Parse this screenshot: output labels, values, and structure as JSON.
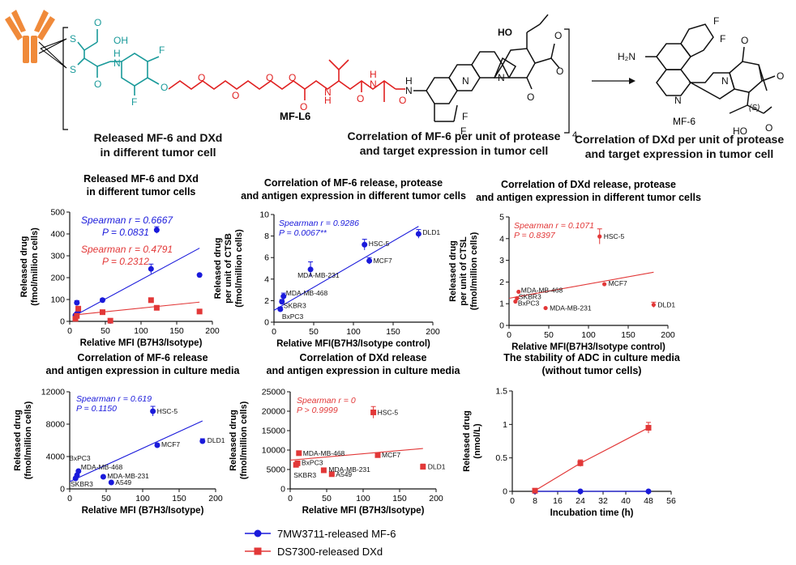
{
  "scheme": {
    "linker_label": "MF-L6",
    "payload_label": "MF-6",
    "subscript_n": "4",
    "atoms": {
      "s1": "S",
      "s2": "S",
      "oh_acid": "OH",
      "o_acid": "O",
      "h_amide1": "H",
      "n_amide1": "N",
      "o_amide1": "O",
      "f_ring1": "F",
      "f_ring2": "F",
      "o_ether": "O",
      "o_peg1": "O",
      "o_peg2": "O",
      "o_peg3": "O",
      "o_peg4": "O",
      "o_carb1": "O",
      "h_n2": "H",
      "n2": "N",
      "o_carb2": "O",
      "h_n3": "H",
      "n3": "N",
      "o_carb3": "O",
      "h_n4": "H",
      "n4": "N",
      "n_ring1": "N",
      "n_ring2": "N",
      "o_lactone1": "O",
      "o_lactone2": "O",
      "o_ketone1": "O",
      "ho1": "HO",
      "f_cf2a": "F",
      "f_cf2b": "F",
      "h2n": "H₂N",
      "f_p1": "F",
      "f_p2": "F",
      "n_p1": "N",
      "n_p2": "N",
      "o_p1": "O",
      "o_p2": "O",
      "o_p3": "O",
      "ho_p": "HO",
      "s_stereo": "(S)"
    }
  },
  "heading_overlays": [
    {
      "text": "Released MF-6 and DXd"
    },
    {
      "text": "in different tumor cell"
    },
    {
      "text": "Correlation of MF-6 per unit of protease"
    },
    {
      "text": "and target expression in tumor cell"
    },
    {
      "text": "Correlation of DXd per unit of protease"
    },
    {
      "text": "and target expression in tumor cell"
    }
  ],
  "legend": [
    {
      "label": "7MW3711-released MF-6",
      "color": "#1a1adb",
      "marker": "circle"
    },
    {
      "label": "DS7300-released DXd",
      "color": "#e23838",
      "marker": "square"
    }
  ],
  "chart_data": [
    {
      "type": "scatter",
      "title": [
        "Released MF-6 and DXd",
        "in different tumor cells"
      ],
      "xlabel": "Relative MFI (B7H3/Isotype)",
      "ylabel": [
        "Released drug",
        "(fmol/million cells)"
      ],
      "xlim": [
        0,
        200
      ],
      "ylim": [
        0,
        500
      ],
      "xticks": [
        0,
        50,
        100,
        150,
        200
      ],
      "yticks": [
        0,
        100,
        200,
        300,
        400,
        500
      ],
      "stats": [
        {
          "r": "Spearman r = 0.6667",
          "p": "P = 0.0831",
          "color": "#1a1adb"
        },
        {
          "r": "Spearman r = 0.4791",
          "p": "P = 0.2312",
          "color": "#e23838"
        }
      ],
      "series": [
        {
          "marker": "circle",
          "color": "#1a1adb",
          "points": [
            [
              8,
              28,
              0
            ],
            [
              10,
              85,
              10
            ],
            [
              12,
              48,
              0
            ],
            [
              10,
              35,
              0
            ],
            [
              46,
              97,
              8
            ],
            [
              57,
              2,
              0
            ],
            [
              114,
              240,
              22
            ],
            [
              122,
              418,
              15
            ],
            [
              182,
              212,
              0
            ]
          ],
          "fit": [
            [
              8,
              28
            ],
            [
              182,
              335
            ]
          ]
        },
        {
          "marker": "square",
          "color": "#e23838",
          "points": [
            [
              8,
              12,
              0
            ],
            [
              10,
              25,
              0
            ],
            [
              12,
              58,
              0
            ],
            [
              46,
              42,
              10
            ],
            [
              57,
              3,
              0
            ],
            [
              114,
              97,
              10
            ],
            [
              122,
              62,
              0
            ],
            [
              182,
              45,
              0
            ]
          ],
          "fit": [
            [
              8,
              30
            ],
            [
              182,
              88
            ]
          ]
        }
      ],
      "labels": []
    },
    {
      "type": "scatter",
      "title": [
        "Correlation of MF-6 release, protease",
        "and antigen expression in different tumor cells"
      ],
      "xlabel": "Relative MFI(B7H3/Isotype control)",
      "ylabel": [
        "Released drug",
        "per unit of CTSB",
        "(fmol/million cells)"
      ],
      "xlim": [
        0,
        200
      ],
      "ylim": [
        0,
        10
      ],
      "xticks": [
        0,
        50,
        100,
        150,
        200
      ],
      "yticks": [
        0,
        2,
        4,
        6,
        8,
        10
      ],
      "stats": [
        {
          "r": "Spearman r = 0.9286",
          "p": "P = 0.0067**",
          "color": "#1a1adb"
        }
      ],
      "series": [
        {
          "marker": "circle",
          "color": "#1a1adb",
          "points": [
            [
              8,
              1.2,
              0.2
            ],
            [
              10,
              1.9,
              0.2
            ],
            [
              12,
              2.4,
              0.3
            ],
            [
              46,
              4.9,
              0.7
            ],
            [
              114,
              7.2,
              0.5
            ],
            [
              120,
              5.7,
              0.3
            ],
            [
              182,
              8.2,
              0.4
            ]
          ],
          "fit": [
            [
              0,
              1.1
            ],
            [
              182,
              8.9
            ]
          ]
        }
      ],
      "labels": [
        {
          "text": "DLD1",
          "x": 182,
          "y": 8.2,
          "dx": 5,
          "dy": 1
        },
        {
          "text": "HSC-5",
          "x": 114,
          "y": 7.2,
          "dx": 5,
          "dy": 2
        },
        {
          "text": "MCF7",
          "x": 120,
          "y": 5.7,
          "dx": 5,
          "dy": 3
        },
        {
          "text": "MDA-MB-231",
          "x": 46,
          "y": 4.9,
          "dx": -16,
          "dy": 10
        },
        {
          "text": "MDA-MB-468",
          "x": 12,
          "y": 2.4,
          "dx": 3,
          "dy": -1
        },
        {
          "text": "SKBR3",
          "x": 10,
          "y": 1.9,
          "dx": 2,
          "dy": 8
        },
        {
          "text": "BxPC3",
          "x": 8,
          "y": 1.2,
          "dx": 2,
          "dy": 12
        }
      ]
    },
    {
      "type": "scatter",
      "title": [
        "Correlation of DXd release, protease",
        "and antigen expression in different tumor cells"
      ],
      "xlabel": "Relative MFI(B7H3/Isotype control)",
      "ylabel": [
        "Released drug",
        "per unit of CTSL",
        "(fmol/million cells)"
      ],
      "xlim": [
        0,
        200
      ],
      "ylim": [
        0,
        5
      ],
      "xticks": [
        0,
        50,
        100,
        150,
        200
      ],
      "yticks": [
        0,
        1,
        2,
        3,
        4,
        5
      ],
      "stats": [
        {
          "r": "Spearman r = 0.1071",
          "p": "P = 0.8397",
          "color": "#e23838"
        }
      ],
      "series": [
        {
          "marker": "circle",
          "color": "#e23838",
          "points": [
            [
              8,
              1.1,
              0
            ],
            [
              10,
              1.25,
              0
            ],
            [
              12,
              1.55,
              0
            ],
            [
              46,
              0.8,
              0
            ],
            [
              114,
              4.1,
              0.35
            ],
            [
              120,
              1.9,
              0
            ],
            [
              182,
              0.95,
              0.12
            ]
          ],
          "fit": [
            [
              0,
              1.25
            ],
            [
              182,
              2.45
            ]
          ]
        }
      ],
      "labels": [
        {
          "text": "HSC-5",
          "x": 114,
          "y": 4.1,
          "dx": 5,
          "dy": 3
        },
        {
          "text": "MCF7",
          "x": 120,
          "y": 1.9,
          "dx": 5,
          "dy": 2
        },
        {
          "text": "MDA-MB-468",
          "x": 12,
          "y": 1.55,
          "dx": 3,
          "dy": 1
        },
        {
          "text": "SKBR3",
          "x": 10,
          "y": 1.25,
          "dx": 2,
          "dy": 1
        },
        {
          "text": "BxPC3",
          "x": 8,
          "y": 1.1,
          "dx": 3,
          "dy": 5
        },
        {
          "text": "MDA-MB-231",
          "x": 46,
          "y": 0.8,
          "dx": 5,
          "dy": 3
        },
        {
          "text": "DLD1",
          "x": 182,
          "y": 0.95,
          "dx": 5,
          "dy": 3
        }
      ]
    },
    {
      "type": "scatter",
      "title": [
        "Correlation of  MF-6 release",
        "and antigen expression  in culture media"
      ],
      "xlabel": "Relative MFI (B7H3/Isotype)",
      "ylabel": [
        "Released drug",
        "(fmol/million cells)"
      ],
      "xlim": [
        0,
        200
      ],
      "ylim": [
        0,
        12000
      ],
      "xticks": [
        0,
        50,
        100,
        150,
        200
      ],
      "yticks": [
        0,
        4000,
        8000,
        12000
      ],
      "stats": [
        {
          "r": "Spearman r = 0.619",
          "p": "P = 0.1150",
          "color": "#1a1adb"
        }
      ],
      "series": [
        {
          "marker": "circle",
          "color": "#1a1adb",
          "points": [
            [
              8,
              1300,
              0
            ],
            [
              10,
              1700,
              0
            ],
            [
              12,
              2200,
              0
            ],
            [
              46,
              1500,
              0
            ],
            [
              57,
              800,
              0
            ],
            [
              114,
              9600,
              600
            ],
            [
              120,
              5400,
              200
            ],
            [
              182,
              5900,
              300
            ]
          ],
          "fit": [
            [
              0,
              900
            ],
            [
              182,
              8400
            ]
          ]
        }
      ],
      "labels": [
        {
          "text": "HSC-5",
          "x": 114,
          "y": 9600,
          "dx": 5,
          "dy": 3
        },
        {
          "text": "MCF7",
          "x": 120,
          "y": 5400,
          "dx": 5,
          "dy": 2
        },
        {
          "text": "DLD1",
          "x": 182,
          "y": 5900,
          "dx": 6,
          "dy": 2
        },
        {
          "text": "BxPC3",
          "x": 8,
          "y": 1300,
          "dx": -8,
          "dy": -22
        },
        {
          "text": "MDA-MB-468",
          "x": 12,
          "y": 2200,
          "dx": 3,
          "dy": -2
        },
        {
          "text": "MDA-MB-231",
          "x": 46,
          "y": 1500,
          "dx": 5,
          "dy": 2
        },
        {
          "text": "SKBR3",
          "x": 10,
          "y": 1700,
          "dx": -8,
          "dy": 14
        },
        {
          "text": "A549",
          "x": 57,
          "y": 800,
          "dx": 5,
          "dy": 3
        }
      ]
    },
    {
      "type": "scatter",
      "title": [
        "Correlation of DXd release",
        "and antigen expression in culture media"
      ],
      "xlabel": "Relative MFI (B7H3/Isotype)",
      "ylabel": [
        "Released drug",
        "(fmol/million cells)"
      ],
      "xlim": [
        0,
        200
      ],
      "ylim": [
        0,
        25000
      ],
      "xticks": [
        0,
        50,
        100,
        150,
        200
      ],
      "yticks": [
        0,
        5000,
        10000,
        15000,
        20000,
        25000
      ],
      "stats": [
        {
          "r": "Spearman r = 0",
          "p": "P > 0.9999",
          "color": "#e23838"
        }
      ],
      "series": [
        {
          "marker": "square",
          "color": "#e23838",
          "points": [
            [
              8,
              6200,
              0
            ],
            [
              10,
              6600,
              0
            ],
            [
              12,
              9200,
              0
            ],
            [
              46,
              4800,
              0
            ],
            [
              57,
              3800,
              0
            ],
            [
              114,
              19700,
              1500
            ],
            [
              120,
              8700,
              0
            ],
            [
              182,
              5700,
              700
            ]
          ],
          "fit": [
            [
              0,
              7400
            ],
            [
              182,
              10400
            ]
          ]
        }
      ],
      "labels": [
        {
          "text": "HSC-5",
          "x": 114,
          "y": 19700,
          "dx": 5,
          "dy": 3
        },
        {
          "text": "MDA-MB-468",
          "x": 12,
          "y": 9200,
          "dx": 5,
          "dy": 3
        },
        {
          "text": "MCF7",
          "x": 120,
          "y": 8700,
          "dx": 5,
          "dy": 3
        },
        {
          "text": "BxPC3",
          "x": 10,
          "y": 6600,
          "dx": 5,
          "dy": 2
        },
        {
          "text": "SKBR3",
          "x": 8,
          "y": 6200,
          "dx": -3,
          "dy": 16
        },
        {
          "text": "MDA-MB-231",
          "x": 46,
          "y": 4800,
          "dx": 6,
          "dy": 2
        },
        {
          "text": "A549",
          "x": 57,
          "y": 3800,
          "dx": 5,
          "dy": 3
        },
        {
          "text": "DLD1",
          "x": 182,
          "y": 5700,
          "dx": 6,
          "dy": 3
        }
      ]
    },
    {
      "type": "line",
      "title": [
        "The stability of ADC in culture media",
        "(without tumor cells)"
      ],
      "xlabel": "Incubation time (h)",
      "ylabel": [
        "Released drug",
        "(nmol/L)"
      ],
      "xlim": [
        0,
        56
      ],
      "ylim": [
        0,
        1.5
      ],
      "xticks": [
        0,
        8,
        16,
        24,
        32,
        40,
        48,
        56
      ],
      "yticks": [
        0.0,
        0.5,
        1.0,
        1.5
      ],
      "stats": [],
      "series": [
        {
          "name": "7MW3711-released MF-6",
          "marker": "circle",
          "color": "#1a1adb",
          "points": [
            [
              8,
              0.0,
              0
            ],
            [
              24,
              0.0,
              0
            ],
            [
              48,
              0.0,
              0
            ]
          ],
          "line": true
        },
        {
          "name": "DS7300-released DXd",
          "marker": "square",
          "color": "#e23838",
          "points": [
            [
              8,
              0.01,
              0
            ],
            [
              24,
              0.42,
              0.05
            ],
            [
              48,
              0.95,
              0.08
            ]
          ],
          "line": true
        }
      ],
      "labels": []
    }
  ]
}
